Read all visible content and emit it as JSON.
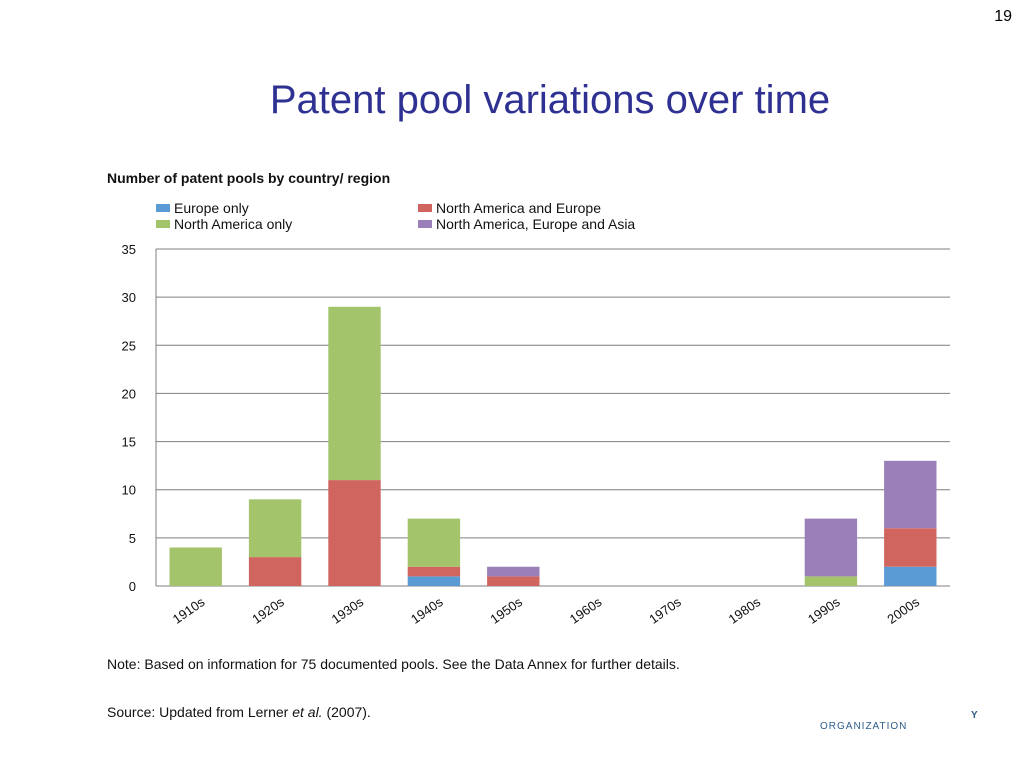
{
  "slide": {
    "number": "19",
    "title": "Patent pool variations over time"
  },
  "chart_data": {
    "type": "bar",
    "stacked": true,
    "title": "Number of patent pools by country/ region",
    "categories": [
      "1910s",
      "1920s",
      "1930s",
      "1940s",
      "1950s",
      "1960s",
      "1970s",
      "1980s",
      "1990s",
      "2000s"
    ],
    "series": [
      {
        "name": "Europe only",
        "color": "#5B9BD5",
        "values": [
          0,
          0,
          0,
          1,
          0,
          0,
          0,
          0,
          0,
          2
        ]
      },
      {
        "name": "North America and Europe",
        "color": "#D0655F",
        "values": [
          0,
          3,
          11,
          1,
          1,
          0,
          0,
          0,
          0,
          4
        ]
      },
      {
        "name": "North America only",
        "color": "#A4C46C",
        "values": [
          4,
          6,
          18,
          5,
          0,
          0,
          0,
          0,
          1,
          0
        ]
      },
      {
        "name": "North America, Europe and Asia",
        "color": "#9B7FB8",
        "values": [
          0,
          0,
          0,
          0,
          1,
          0,
          0,
          0,
          6,
          7
        ]
      }
    ],
    "ylim": [
      0,
      35
    ],
    "yticks": [
      0,
      5,
      10,
      15,
      20,
      25,
      30,
      35
    ],
    "grid": true,
    "legend_position": "top"
  },
  "note": "Note: Based on information for 75 documented pools. See the Data Annex for further details.",
  "source": {
    "prefix": "Source: Updated from Lerner ",
    "italic": "et al.",
    "suffix": " (2007)."
  },
  "footer": {
    "organization": "ORGANIZATION",
    "mark": "Y"
  }
}
